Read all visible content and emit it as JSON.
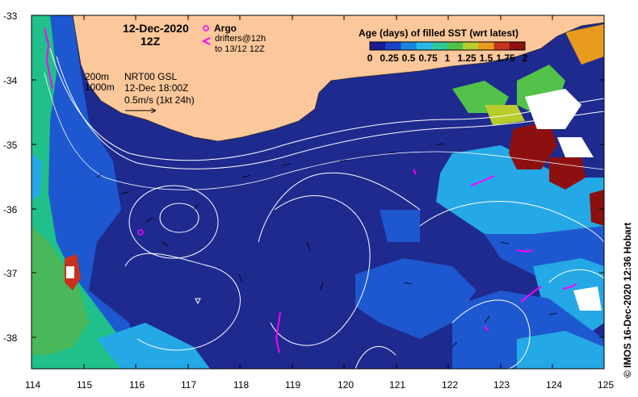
{
  "map": {
    "date": "12-Dec-2020",
    "time": "12Z",
    "depth_contours": [
      "200m",
      "1000m"
    ],
    "altimetry": {
      "product": "NRT00 GSL",
      "date": "12-Dec 18:00Z",
      "vector_scale": "0.5m/s (1kt 24h)"
    },
    "legend": {
      "argo": "Argo",
      "drifters_line1": "drifters@12h",
      "drifters_line2": "to 13/12 12Z"
    },
    "colorbar": {
      "title": "Age (days) of filled SST (wrt latest)",
      "tick_labels": [
        "0",
        "0.25",
        "0.5",
        "0.75",
        "1",
        "1.25",
        "1.5",
        "1.75",
        "2"
      ],
      "colors": [
        "#1d1b8f",
        "#1c42c9",
        "#1a86e0",
        "#28b8e8",
        "#2ec89c",
        "#52c24a",
        "#b8cc2c",
        "#e89a1c",
        "#c8321c",
        "#8c1010"
      ]
    },
    "axes": {
      "lon_labels": [
        "114",
        "115",
        "116",
        "117",
        "118",
        "119",
        "120",
        "121",
        "122",
        "123",
        "124",
        "125"
      ],
      "lat_labels": [
        "-33",
        "-34",
        "-35",
        "-36",
        "-37",
        "-38"
      ]
    },
    "credit": "© IMOS 16-Dec-2020 12:36 Hobart",
    "colors": {
      "land": "#fcc79a",
      "ocean_deep": "#1e2a8e",
      "ocean_mid": "#1d58d0",
      "ocean_light": "#25a8e6",
      "ocean_green": "#1fc08a",
      "argo": "#ff00ff",
      "contour": "#ffffff"
    }
  }
}
